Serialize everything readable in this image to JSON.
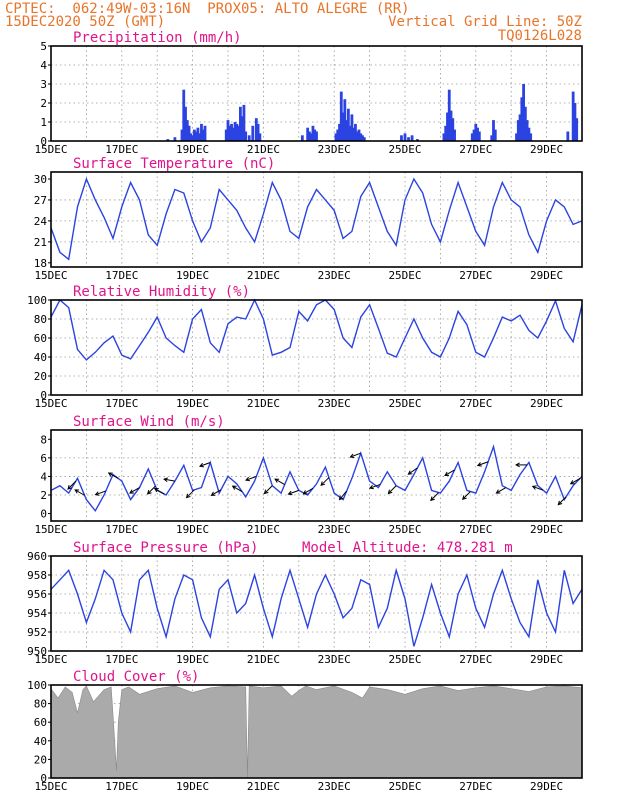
{
  "header": {
    "line1_left": "CPTEC:  062:49W-03:16N  PROX05: ALTO ALEGRE (RR)",
    "line2_left": "15DEC2020 50Z (GMT)",
    "line2_right": "Vertical Grid Line: 50Z",
    "line3_right": "TQ0126L028"
  },
  "colors": {
    "header": "#e8742a",
    "title": "#e0148c",
    "series": "#2b43e0",
    "cloud": "#aaaaaa",
    "grid": "#999999"
  },
  "x_tick_labels": [
    "15DEC",
    "17DEC",
    "19DEC",
    "21DEC",
    "23DEC",
    "25DEC",
    "27DEC",
    "29DEC"
  ],
  "chart_data": [
    {
      "id": "precip",
      "type": "bar",
      "title": "Precipitation (mm/h)",
      "xlim": [
        0,
        15
      ],
      "ylim": [
        0,
        5
      ],
      "yticks": [
        0,
        1,
        2,
        3,
        4,
        5
      ],
      "bars": [
        [
          3.3,
          0.1
        ],
        [
          3.5,
          0.2
        ],
        [
          3.7,
          0.6
        ],
        [
          3.75,
          2.7
        ],
        [
          3.8,
          1.8
        ],
        [
          3.85,
          1.1
        ],
        [
          3.9,
          0.8
        ],
        [
          3.95,
          0.4
        ],
        [
          4.0,
          0.3
        ],
        [
          4.05,
          0.6
        ],
        [
          4.1,
          0.5
        ],
        [
          4.15,
          0.7
        ],
        [
          4.2,
          0.4
        ],
        [
          4.25,
          0.9
        ],
        [
          4.3,
          0.6
        ],
        [
          4.35,
          0.8
        ],
        [
          4.95,
          0.6
        ],
        [
          5.0,
          1.1
        ],
        [
          5.05,
          0.8
        ],
        [
          5.1,
          0.9
        ],
        [
          5.15,
          0.7
        ],
        [
          5.2,
          1.0
        ],
        [
          5.25,
          0.9
        ],
        [
          5.3,
          0.8
        ],
        [
          5.35,
          1.8
        ],
        [
          5.4,
          1.3
        ],
        [
          5.45,
          1.9
        ],
        [
          5.5,
          0.5
        ],
        [
          5.6,
          0.3
        ],
        [
          5.7,
          0.8
        ],
        [
          5.8,
          1.2
        ],
        [
          5.85,
          0.9
        ],
        [
          5.9,
          0.4
        ],
        [
          7.1,
          0.3
        ],
        [
          7.25,
          0.7
        ],
        [
          7.3,
          0.5
        ],
        [
          7.35,
          0.4
        ],
        [
          7.4,
          0.8
        ],
        [
          7.45,
          0.6
        ],
        [
          7.5,
          0.5
        ],
        [
          8.05,
          0.4
        ],
        [
          8.1,
          0.6
        ],
        [
          8.15,
          0.9
        ],
        [
          8.2,
          2.6
        ],
        [
          8.25,
          1.5
        ],
        [
          8.3,
          2.2
        ],
        [
          8.35,
          1.1
        ],
        [
          8.4,
          1.7
        ],
        [
          8.45,
          0.8
        ],
        [
          8.5,
          1.4
        ],
        [
          8.55,
          0.7
        ],
        [
          8.6,
          0.9
        ],
        [
          8.65,
          0.5
        ],
        [
          8.7,
          0.6
        ],
        [
          8.75,
          0.4
        ],
        [
          8.8,
          0.3
        ],
        [
          8.85,
          0.2
        ],
        [
          9.9,
          0.3
        ],
        [
          10.0,
          0.4
        ],
        [
          10.1,
          0.2
        ],
        [
          10.2,
          0.3
        ],
        [
          10.35,
          0.1
        ],
        [
          11.1,
          0.4
        ],
        [
          11.15,
          0.8
        ],
        [
          11.2,
          1.5
        ],
        [
          11.25,
          2.7
        ],
        [
          11.3,
          1.6
        ],
        [
          11.35,
          1.2
        ],
        [
          11.4,
          0.6
        ],
        [
          11.9,
          0.4
        ],
        [
          11.95,
          0.6
        ],
        [
          12.0,
          0.9
        ],
        [
          12.05,
          0.7
        ],
        [
          12.1,
          0.5
        ],
        [
          12.45,
          0.3
        ],
        [
          12.5,
          1.1
        ],
        [
          12.55,
          0.6
        ],
        [
          13.15,
          0.4
        ],
        [
          13.2,
          1.1
        ],
        [
          13.25,
          1.4
        ],
        [
          13.3,
          2.3
        ],
        [
          13.35,
          3.0
        ],
        [
          13.4,
          1.8
        ],
        [
          13.45,
          1.1
        ],
        [
          13.5,
          0.7
        ],
        [
          13.55,
          0.4
        ],
        [
          14.6,
          0.5
        ],
        [
          14.75,
          2.6
        ],
        [
          14.8,
          2.0
        ],
        [
          14.85,
          1.2
        ]
      ]
    },
    {
      "id": "temperature",
      "type": "line",
      "title": "Surface Temperature (nC)",
      "xlim": [
        0,
        15
      ],
      "ylim": [
        17.4,
        31
      ],
      "yticks": [
        18,
        21,
        24,
        27,
        30
      ],
      "x": [
        0,
        0.25,
        0.5,
        0.75,
        1,
        1.25,
        1.5,
        1.75,
        2,
        2.25,
        2.5,
        2.75,
        3,
        3.25,
        3.5,
        3.75,
        4,
        4.25,
        4.5,
        4.75,
        5,
        5.25,
        5.5,
        5.75,
        6,
        6.25,
        6.5,
        6.75,
        7,
        7.25,
        7.5,
        7.75,
        8,
        8.25,
        8.5,
        8.75,
        9,
        9.25,
        9.5,
        9.75,
        10,
        10.25,
        10.5,
        10.75,
        11,
        11.25,
        11.5,
        11.75,
        12,
        12.25,
        12.5,
        12.75,
        13,
        13.25,
        13.5,
        13.75,
        14,
        14.25,
        14.5,
        14.75,
        15
      ],
      "y": [
        23,
        19.5,
        18.5,
        26,
        30,
        27,
        24.5,
        21.5,
        26,
        29.5,
        27,
        22,
        20.5,
        25,
        28.5,
        28,
        24,
        21,
        23,
        28.5,
        27,
        25.5,
        23,
        21,
        25,
        29.5,
        27,
        22.5,
        21.5,
        26,
        28.5,
        27,
        25.5,
        21.5,
        22.5,
        27.5,
        29.5,
        26,
        22.5,
        20.5,
        27,
        30,
        28,
        23.5,
        21,
        25.5,
        29.5,
        26,
        22.5,
        20.5,
        26,
        29.5,
        27,
        26,
        22,
        19.5,
        24,
        27,
        26,
        23.5,
        24
      ]
    },
    {
      "id": "humidity",
      "type": "line",
      "title": "Relative Humidity (%)",
      "xlim": [
        0,
        15
      ],
      "ylim": [
        0,
        100
      ],
      "yticks": [
        0,
        20,
        40,
        60,
        80,
        100
      ],
      "x": [
        0,
        0.25,
        0.5,
        0.75,
        1,
        1.25,
        1.5,
        1.75,
        2,
        2.25,
        2.5,
        2.75,
        3,
        3.25,
        3.5,
        3.75,
        4,
        4.25,
        4.5,
        4.75,
        5,
        5.25,
        5.5,
        5.75,
        6,
        6.25,
        6.5,
        6.75,
        7,
        7.25,
        7.5,
        7.75,
        8,
        8.25,
        8.5,
        8.75,
        9,
        9.25,
        9.5,
        9.75,
        10,
        10.25,
        10.5,
        10.75,
        11,
        11.25,
        11.5,
        11.75,
        12,
        12.25,
        12.5,
        12.75,
        13,
        13.25,
        13.5,
        13.75,
        14,
        14.25,
        14.5,
        14.75,
        15
      ],
      "y": [
        82,
        100,
        92,
        48,
        37,
        45,
        55,
        62,
        42,
        38,
        52,
        66,
        82,
        60,
        52,
        45,
        80,
        90,
        55,
        45,
        75,
        82,
        80,
        100,
        80,
        42,
        45,
        50,
        88,
        78,
        95,
        100,
        90,
        60,
        50,
        82,
        95,
        70,
        44,
        40,
        60,
        80,
        60,
        45,
        40,
        60,
        88,
        74,
        45,
        40,
        60,
        82,
        78,
        84,
        68,
        60,
        78,
        99,
        70,
        56,
        95
      ]
    },
    {
      "id": "wind",
      "type": "line",
      "title": "Surface Wind (m/s)",
      "xlim": [
        0,
        15
      ],
      "ylim": [
        -0.8,
        9
      ],
      "yticks": [
        0,
        2,
        4,
        6,
        8
      ],
      "x": [
        0,
        0.25,
        0.5,
        0.75,
        1,
        1.25,
        1.5,
        1.75,
        2,
        2.25,
        2.5,
        2.75,
        3,
        3.25,
        3.5,
        3.75,
        4,
        4.25,
        4.5,
        4.75,
        5,
        5.25,
        5.5,
        5.75,
        6,
        6.25,
        6.5,
        6.75,
        7,
        7.25,
        7.5,
        7.75,
        8,
        8.25,
        8.5,
        8.75,
        9,
        9.25,
        9.5,
        9.75,
        10,
        10.25,
        10.5,
        10.75,
        11,
        11.25,
        11.5,
        11.75,
        12,
        12.25,
        12.5,
        12.75,
        13,
        13.25,
        13.5,
        13.75,
        14,
        14.25,
        14.5,
        14.75,
        15
      ],
      "y": [
        2.5,
        3,
        2.2,
        3.8,
        1.5,
        0.3,
        2,
        4.2,
        3.5,
        1.5,
        2.8,
        4.8,
        2.5,
        2,
        3.5,
        5.2,
        2.5,
        2.8,
        5.5,
        2.2,
        4,
        3.2,
        1.8,
        3.5,
        6,
        3,
        2.2,
        4.5,
        2.5,
        2,
        3.2,
        5,
        2.2,
        1.5,
        3.8,
        6.5,
        3.5,
        2.8,
        4.5,
        3,
        2.5,
        4.2,
        6,
        2.5,
        2.2,
        3.5,
        5.5,
        2.5,
        2.2,
        4.5,
        7.2,
        3,
        2.5,
        4.2,
        5.5,
        3,
        2.2,
        4,
        1.5,
        3,
        4
      ],
      "arrows": [
        [
          0.7,
          225
        ],
        [
          0.95,
          150
        ],
        [
          1.55,
          200
        ],
        [
          1.9,
          150
        ],
        [
          2.5,
          210
        ],
        [
          2.95,
          225
        ],
        [
          3.2,
          150
        ],
        [
          3.5,
          170
        ],
        [
          4.05,
          225
        ],
        [
          4.5,
          200
        ],
        [
          4.8,
          210
        ],
        [
          5.4,
          150
        ],
        [
          5.8,
          200
        ],
        [
          6.25,
          225
        ],
        [
          6.6,
          150
        ],
        [
          7.0,
          200
        ],
        [
          7.4,
          210
        ],
        [
          7.85,
          225
        ],
        [
          8.35,
          230
        ],
        [
          8.75,
          200
        ],
        [
          9.3,
          200
        ],
        [
          9.75,
          225
        ],
        [
          10.35,
          215
        ],
        [
          10.95,
          225
        ],
        [
          11.4,
          210
        ],
        [
          11.85,
          225
        ],
        [
          12.35,
          200
        ],
        [
          12.85,
          210
        ],
        [
          13.45,
          180
        ],
        [
          13.9,
          160
        ],
        [
          14.55,
          225
        ],
        [
          14.95,
          210
        ]
      ]
    },
    {
      "id": "pressure",
      "type": "line",
      "title": "Surface Pressure (hPa)",
      "annotation": "Model Altitude: 478.281  m",
      "xlim": [
        0,
        15
      ],
      "ylim": [
        950,
        960
      ],
      "yticks": [
        950,
        952,
        954,
        956,
        958,
        960
      ],
      "x": [
        0,
        0.25,
        0.5,
        0.75,
        1,
        1.25,
        1.5,
        1.75,
        2,
        2.25,
        2.5,
        2.75,
        3,
        3.25,
        3.5,
        3.75,
        4,
        4.25,
        4.5,
        4.75,
        5,
        5.25,
        5.5,
        5.75,
        6,
        6.25,
        6.5,
        6.75,
        7,
        7.25,
        7.5,
        7.75,
        8,
        8.25,
        8.5,
        8.75,
        9,
        9.25,
        9.5,
        9.75,
        10,
        10.25,
        10.5,
        10.75,
        11,
        11.25,
        11.5,
        11.75,
        12,
        12.25,
        12.5,
        12.75,
        13,
        13.25,
        13.5,
        13.75,
        14,
        14.25,
        14.5,
        14.75,
        15
      ],
      "y": [
        956.5,
        957.5,
        958.5,
        956,
        953,
        955.5,
        958.5,
        957.5,
        954,
        952,
        957.5,
        958.5,
        954.5,
        951.5,
        955.5,
        958,
        957.5,
        953.5,
        951.5,
        956.5,
        957.5,
        954,
        955,
        958,
        954.5,
        951.5,
        955.5,
        958.5,
        955.5,
        952.5,
        956,
        958,
        956,
        953.5,
        954.5,
        957.5,
        957,
        952.5,
        954.5,
        958.5,
        955.5,
        950.5,
        953.5,
        957,
        954,
        951.5,
        956,
        958,
        954.5,
        952.5,
        956,
        958.5,
        955.5,
        953,
        951.5,
        957.5,
        954,
        952,
        958.5,
        955,
        956.5
      ]
    },
    {
      "id": "cloud",
      "type": "area",
      "title": "Cloud Cover (%)",
      "xlim": [
        0,
        15
      ],
      "ylim": [
        0,
        100
      ],
      "yticks": [
        0,
        20,
        40,
        60,
        80,
        100
      ],
      "x": [
        0,
        0.2,
        0.4,
        0.6,
        0.75,
        0.9,
        1,
        1.2,
        1.5,
        1.7,
        1.8,
        1.85,
        1.9,
        2,
        2.2,
        2.5,
        3,
        3.5,
        4,
        4.5,
        5,
        5.5,
        5.55,
        5.6,
        6,
        6.5,
        6.8,
        7,
        7.2,
        7.5,
        8,
        8.5,
        8.8,
        9,
        9.5,
        10,
        10.5,
        11,
        11.5,
        12,
        12.5,
        13,
        13.5,
        14,
        14.5,
        15
      ],
      "y": [
        96,
        86,
        98,
        92,
        70,
        95,
        99,
        82,
        95,
        98,
        40,
        8,
        60,
        95,
        98,
        90,
        96,
        99,
        92,
        97,
        99,
        98,
        0,
        99,
        97,
        99,
        88,
        94,
        99,
        95,
        99,
        92,
        86,
        98,
        95,
        90,
        96,
        99,
        94,
        97,
        99,
        96,
        93,
        98,
        99,
        97
      ]
    }
  ]
}
